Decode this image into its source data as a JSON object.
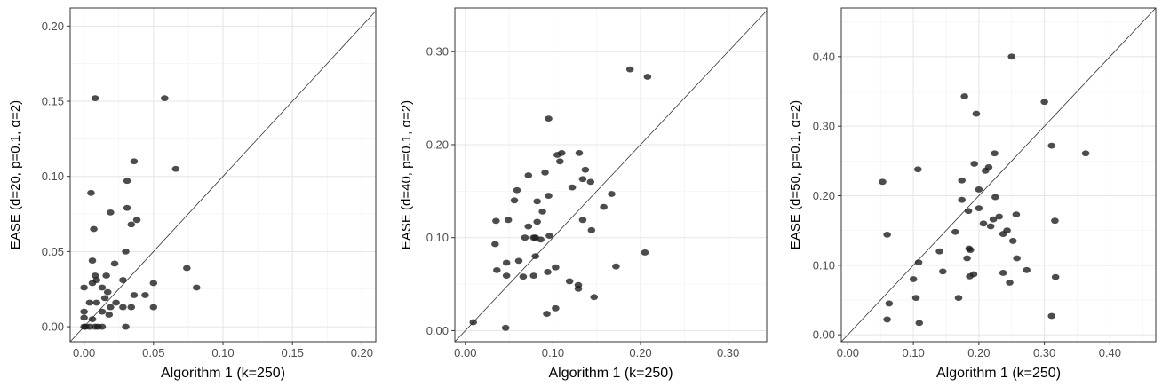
{
  "chart_data": [
    {
      "type": "scatter",
      "xlabel": "Algorithm 1 (k=250)",
      "ylabel": "EASE (d=20, p=0.1, α=2)",
      "xlim": [
        -0.01,
        0.21
      ],
      "ylim": [
        -0.01,
        0.212
      ],
      "xticks": [
        0.0,
        0.05,
        0.1,
        0.15,
        0.2
      ],
      "yticks": [
        0.0,
        0.05,
        0.1,
        0.15,
        0.2
      ],
      "tick_labels": {
        "x": [
          "0.00",
          "0.05",
          "0.10",
          "0.15",
          "0.20"
        ],
        "y": [
          "0.00",
          "0.05",
          "0.10",
          "0.15",
          "0.20"
        ]
      },
      "grid": true,
      "reference_line": "y = x",
      "points": [
        [
          0.008,
          0.152
        ],
        [
          0.058,
          0.152
        ],
        [
          0.036,
          0.11
        ],
        [
          0.066,
          0.105
        ],
        [
          0.031,
          0.097
        ],
        [
          0.005,
          0.089
        ],
        [
          0.031,
          0.079
        ],
        [
          0.038,
          0.071
        ],
        [
          0.019,
          0.076
        ],
        [
          0.034,
          0.068
        ],
        [
          0.007,
          0.065
        ],
        [
          0.03,
          0.05
        ],
        [
          0.006,
          0.044
        ],
        [
          0.022,
          0.042
        ],
        [
          0.074,
          0.039
        ],
        [
          0.008,
          0.034
        ],
        [
          0.016,
          0.034
        ],
        [
          0.009,
          0.031
        ],
        [
          0.006,
          0.029
        ],
        [
          0.05,
          0.029
        ],
        [
          0.0,
          0.026
        ],
        [
          0.013,
          0.026
        ],
        [
          0.081,
          0.026
        ],
        [
          0.028,
          0.031
        ],
        [
          0.017,
          0.023
        ],
        [
          0.036,
          0.021
        ],
        [
          0.044,
          0.021
        ],
        [
          0.015,
          0.019
        ],
        [
          0.004,
          0.016
        ],
        [
          0.009,
          0.016
        ],
        [
          0.023,
          0.016
        ],
        [
          0.019,
          0.013
        ],
        [
          0.028,
          0.013
        ],
        [
          0.034,
          0.013
        ],
        [
          0.05,
          0.013
        ],
        [
          0.0,
          0.01
        ],
        [
          0.013,
          0.01
        ],
        [
          0.018,
          0.008
        ],
        [
          0.0,
          0.006
        ],
        [
          0.006,
          0.005
        ],
        [
          0.0,
          0.0
        ],
        [
          0.004,
          0.0
        ],
        [
          0.008,
          0.0
        ],
        [
          0.01,
          0.0
        ],
        [
          0.013,
          0.0
        ],
        [
          0.03,
          0.0
        ],
        [
          0.001,
          0.0
        ]
      ]
    },
    {
      "type": "scatter",
      "xlabel": "Algorithm 1 (k=250)",
      "ylabel": "EASE (d=40, p=0.1, α=2)",
      "xlim": [
        -0.012,
        0.344
      ],
      "ylim": [
        -0.012,
        0.347
      ],
      "xticks": [
        0.0,
        0.1,
        0.2,
        0.3
      ],
      "yticks": [
        0.0,
        0.1,
        0.2,
        0.3
      ],
      "tick_labels": {
        "x": [
          "0.00",
          "0.10",
          "0.20",
          "0.30"
        ],
        "y": [
          "0.00",
          "0.10",
          "0.20",
          "0.30"
        ]
      },
      "grid": true,
      "reference_line": "y = x",
      "points": [
        [
          0.188,
          0.281
        ],
        [
          0.208,
          0.273
        ],
        [
          0.095,
          0.228
        ],
        [
          0.105,
          0.189
        ],
        [
          0.11,
          0.191
        ],
        [
          0.13,
          0.191
        ],
        [
          0.108,
          0.182
        ],
        [
          0.091,
          0.17
        ],
        [
          0.072,
          0.167
        ],
        [
          0.137,
          0.173
        ],
        [
          0.134,
          0.163
        ],
        [
          0.143,
          0.16
        ],
        [
          0.059,
          0.151
        ],
        [
          0.122,
          0.154
        ],
        [
          0.167,
          0.147
        ],
        [
          0.095,
          0.145
        ],
        [
          0.082,
          0.139
        ],
        [
          0.056,
          0.14
        ],
        [
          0.158,
          0.133
        ],
        [
          0.088,
          0.128
        ],
        [
          0.035,
          0.118
        ],
        [
          0.049,
          0.119
        ],
        [
          0.082,
          0.117
        ],
        [
          0.134,
          0.119
        ],
        [
          0.072,
          0.112
        ],
        [
          0.144,
          0.108
        ],
        [
          0.096,
          0.102
        ],
        [
          0.068,
          0.1
        ],
        [
          0.078,
          0.1
        ],
        [
          0.08,
          0.1
        ],
        [
          0.086,
          0.098
        ],
        [
          0.034,
          0.093
        ],
        [
          0.08,
          0.08
        ],
        [
          0.047,
          0.073
        ],
        [
          0.061,
          0.075
        ],
        [
          0.205,
          0.084
        ],
        [
          0.172,
          0.069
        ],
        [
          0.036,
          0.065
        ],
        [
          0.047,
          0.059
        ],
        [
          0.066,
          0.058
        ],
        [
          0.103,
          0.068
        ],
        [
          0.094,
          0.063
        ],
        [
          0.078,
          0.059
        ],
        [
          0.119,
          0.053
        ],
        [
          0.129,
          0.049
        ],
        [
          0.129,
          0.045
        ],
        [
          0.147,
          0.036
        ],
        [
          0.103,
          0.024
        ],
        [
          0.093,
          0.018
        ],
        [
          0.046,
          0.003
        ],
        [
          0.009,
          0.009
        ]
      ]
    },
    {
      "type": "scatter",
      "xlabel": "Algorithm 1 (k=250)",
      "ylabel": "EASE (d=50, p=0.1, α=2)",
      "xlim": [
        -0.01,
        0.47
      ],
      "ylim": [
        -0.01,
        0.47
      ],
      "xticks": [
        0.0,
        0.1,
        0.2,
        0.3,
        0.4
      ],
      "yticks": [
        0.0,
        0.1,
        0.2,
        0.3,
        0.4
      ],
      "tick_labels": {
        "x": [
          "0.00",
          "0.10",
          "0.20",
          "0.30",
          "0.40"
        ],
        "y": [
          "0.00",
          "0.10",
          "0.20",
          "0.30",
          "0.40"
        ]
      },
      "grid": true,
      "reference_line": "y = x",
      "points": [
        [
          0.25,
          0.4
        ],
        [
          0.178,
          0.343
        ],
        [
          0.3,
          0.335
        ],
        [
          0.196,
          0.318
        ],
        [
          0.311,
          0.272
        ],
        [
          0.363,
          0.261
        ],
        [
          0.224,
          0.261
        ],
        [
          0.193,
          0.246
        ],
        [
          0.215,
          0.241
        ],
        [
          0.21,
          0.236
        ],
        [
          0.107,
          0.238
        ],
        [
          0.053,
          0.22
        ],
        [
          0.174,
          0.222
        ],
        [
          0.2,
          0.209
        ],
        [
          0.225,
          0.198
        ],
        [
          0.174,
          0.194
        ],
        [
          0.2,
          0.182
        ],
        [
          0.184,
          0.178
        ],
        [
          0.257,
          0.173
        ],
        [
          0.231,
          0.17
        ],
        [
          0.222,
          0.166
        ],
        [
          0.316,
          0.164
        ],
        [
          0.207,
          0.16
        ],
        [
          0.218,
          0.156
        ],
        [
          0.243,
          0.15
        ],
        [
          0.237,
          0.145
        ],
        [
          0.06,
          0.144
        ],
        [
          0.164,
          0.148
        ],
        [
          0.252,
          0.135
        ],
        [
          0.14,
          0.12
        ],
        [
          0.185,
          0.124
        ],
        [
          0.187,
          0.122
        ],
        [
          0.258,
          0.11
        ],
        [
          0.108,
          0.104
        ],
        [
          0.182,
          0.11
        ],
        [
          0.145,
          0.091
        ],
        [
          0.1,
          0.08
        ],
        [
          0.192,
          0.087
        ],
        [
          0.186,
          0.084
        ],
        [
          0.273,
          0.093
        ],
        [
          0.237,
          0.089
        ],
        [
          0.247,
          0.075
        ],
        [
          0.317,
          0.083
        ],
        [
          0.063,
          0.045
        ],
        [
          0.104,
          0.053
        ],
        [
          0.169,
          0.053
        ],
        [
          0.311,
          0.027
        ],
        [
          0.06,
          0.022
        ],
        [
          0.109,
          0.017
        ]
      ]
    }
  ]
}
